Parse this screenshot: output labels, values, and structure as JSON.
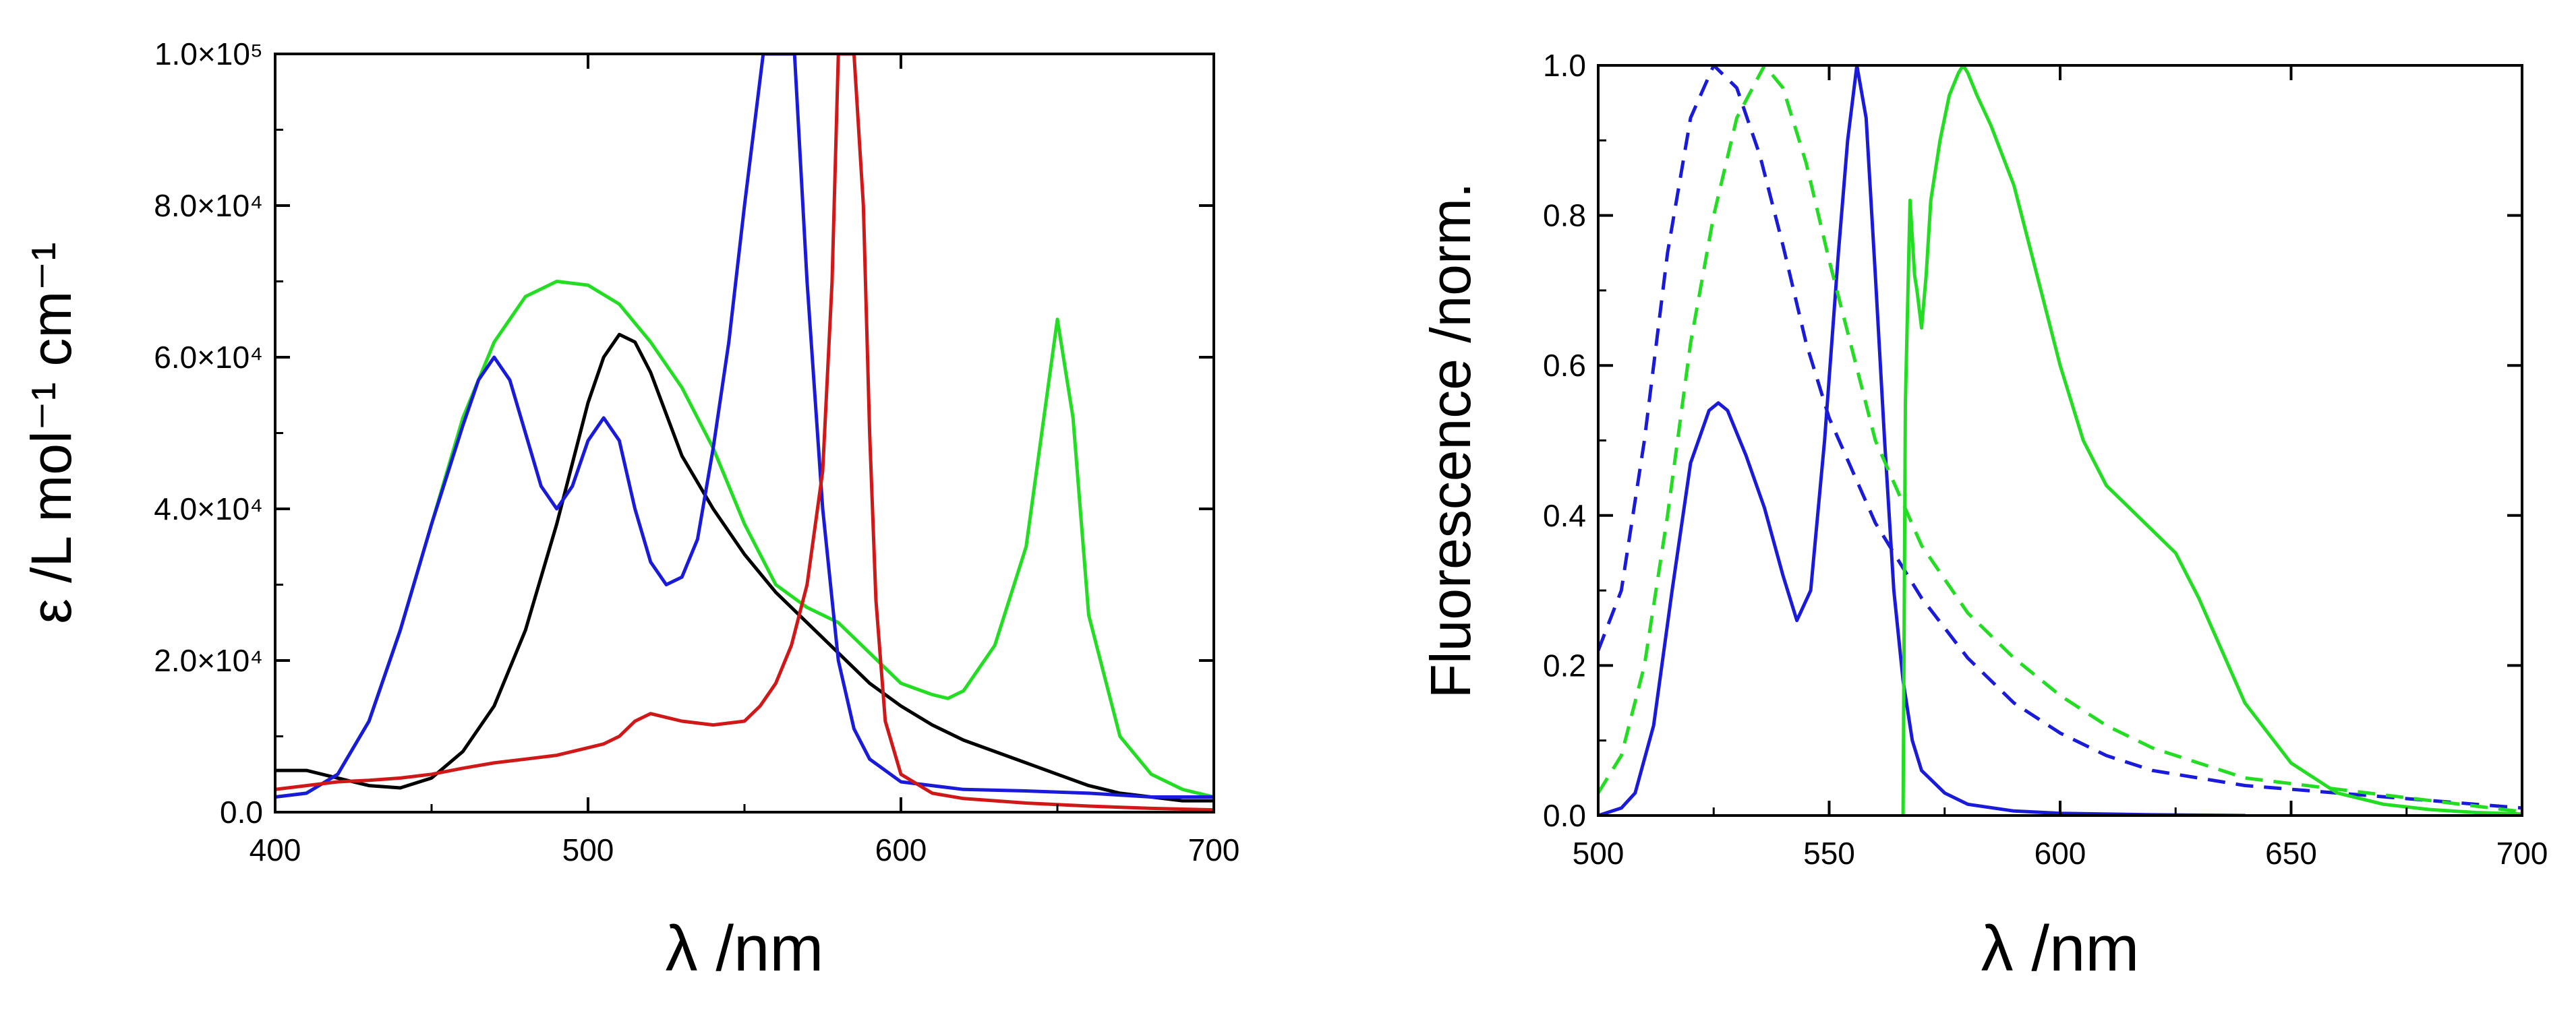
{
  "chart_data": [
    {
      "type": "line",
      "title": "",
      "xlabel": "λ /nm",
      "ylabel": "ε /L mol⁻¹ cm⁻¹",
      "xlim": [
        400,
        700
      ],
      "ylim": [
        0,
        100000
      ],
      "xticks": [
        400,
        500,
        600,
        700
      ],
      "xtick_labels": [
        "400",
        "500",
        "600",
        "700"
      ],
      "yticks": [
        0,
        20000,
        40000,
        60000,
        80000,
        100000
      ],
      "ytick_labels": [
        "0.0",
        "2.0×10⁴",
        "4.0×10⁴",
        "6.0×10⁴",
        "8.0×10⁴",
        "1.0×10⁵"
      ],
      "grid": false,
      "series": [
        {
          "name": "black",
          "color": "#000000",
          "dash": "solid",
          "x": [
            400,
            410,
            420,
            430,
            440,
            450,
            460,
            470,
            480,
            490,
            500,
            505,
            510,
            515,
            520,
            530,
            540,
            550,
            560,
            570,
            580,
            590,
            600,
            610,
            620,
            630,
            640,
            650,
            660,
            670,
            680,
            690,
            700
          ],
          "y": [
            5500,
            5500,
            4500,
            3500,
            3200,
            4500,
            8000,
            14000,
            24000,
            38000,
            54000,
            60000,
            63000,
            62000,
            58000,
            47000,
            40000,
            34000,
            29000,
            25000,
            21000,
            17000,
            14000,
            11500,
            9500,
            8000,
            6500,
            5000,
            3500,
            2500,
            2000,
            1500,
            1500
          ]
        },
        {
          "name": "green",
          "color": "#22dd22",
          "dash": "solid",
          "x": [
            400,
            410,
            420,
            430,
            440,
            450,
            460,
            470,
            480,
            490,
            500,
            510,
            520,
            530,
            540,
            550,
            560,
            570,
            580,
            590,
            600,
            610,
            615,
            620,
            630,
            640,
            645,
            650,
            655,
            660,
            670,
            680,
            690,
            700
          ],
          "y": [
            2000,
            2500,
            5000,
            12000,
            24000,
            38000,
            52000,
            62000,
            68000,
            70000,
            69500,
            67000,
            62000,
            56000,
            48000,
            38000,
            30000,
            27000,
            25000,
            21000,
            17000,
            15500,
            15000,
            16000,
            22000,
            35000,
            50000,
            65000,
            52000,
            26000,
            10000,
            5000,
            3000,
            2000
          ]
        },
        {
          "name": "blue",
          "color": "#1a1adb",
          "dash": "solid",
          "x": [
            400,
            410,
            420,
            430,
            440,
            450,
            460,
            465,
            470,
            475,
            480,
            485,
            490,
            495,
            500,
            505,
            510,
            515,
            520,
            525,
            530,
            535,
            540,
            545,
            550,
            553,
            556,
            560,
            566,
            570,
            575,
            580,
            585,
            590,
            600,
            620,
            640,
            660,
            680,
            700
          ],
          "y": [
            2000,
            2500,
            5000,
            12000,
            24000,
            38000,
            51000,
            57000,
            60000,
            57000,
            50000,
            43000,
            40000,
            43000,
            49000,
            52000,
            49000,
            40000,
            33000,
            30000,
            31000,
            36000,
            48000,
            62000,
            80000,
            90000,
            100000,
            100000,
            100000,
            70000,
            40000,
            20000,
            11000,
            7000,
            4000,
            3000,
            2800,
            2500,
            2000,
            2000
          ]
        },
        {
          "name": "red",
          "color": "#d01818",
          "dash": "solid",
          "x": [
            400,
            410,
            420,
            430,
            440,
            450,
            460,
            470,
            480,
            490,
            500,
            505,
            510,
            515,
            520,
            525,
            530,
            540,
            550,
            555,
            560,
            565,
            570,
            575,
            578,
            580,
            582,
            585,
            588,
            590,
            592,
            595,
            600,
            610,
            620,
            640,
            660,
            680,
            700
          ],
          "y": [
            3000,
            3500,
            4000,
            4200,
            4500,
            5000,
            5800,
            6500,
            7000,
            7500,
            8500,
            9000,
            10000,
            12000,
            13000,
            12500,
            12000,
            11500,
            12000,
            14000,
            17000,
            22000,
            30000,
            45000,
            70000,
            100000,
            100000,
            100000,
            80000,
            50000,
            28000,
            12000,
            5000,
            2500,
            1800,
            1200,
            800,
            500,
            300
          ]
        }
      ]
    },
    {
      "type": "line",
      "title": "",
      "xlabel": "λ /nm",
      "ylabel": "Fluorescence /norm.",
      "xlim": [
        500,
        700
      ],
      "ylim": [
        0,
        1
      ],
      "xticks": [
        500,
        550,
        600,
        650,
        700
      ],
      "xtick_labels": [
        "500",
        "550",
        "600",
        "650",
        "700"
      ],
      "yticks": [
        0,
        0.2,
        0.4,
        0.6,
        0.8,
        1.0
      ],
      "ytick_labels": [
        "0.0",
        "0.2",
        "0.4",
        "0.6",
        "0.8",
        "1.0"
      ],
      "grid": false,
      "series": [
        {
          "name": "blue solid",
          "color": "#1a1adb",
          "dash": "solid",
          "x": [
            500,
            505,
            508,
            512,
            516,
            520,
            524,
            526,
            528,
            532,
            536,
            540,
            543,
            546,
            549,
            552,
            554,
            556,
            558,
            560,
            562,
            564,
            566,
            568,
            570,
            575,
            580,
            590,
            600,
            620,
            640
          ],
          "y": [
            0.0,
            0.01,
            0.03,
            0.12,
            0.3,
            0.47,
            0.54,
            0.55,
            0.54,
            0.48,
            0.41,
            0.32,
            0.26,
            0.3,
            0.5,
            0.75,
            0.9,
            1.0,
            0.93,
            0.72,
            0.5,
            0.3,
            0.18,
            0.1,
            0.06,
            0.03,
            0.015,
            0.006,
            0.003,
            0.001,
            0.0
          ]
        },
        {
          "name": "blue dashed",
          "color": "#1a1adb",
          "dash": "dashed",
          "x": [
            500,
            505,
            510,
            515,
            520,
            525,
            530,
            535,
            540,
            545,
            550,
            560,
            570,
            580,
            590,
            600,
            610,
            620,
            640,
            660,
            680,
            700
          ],
          "y": [
            0.22,
            0.3,
            0.5,
            0.75,
            0.93,
            1.0,
            0.97,
            0.88,
            0.76,
            0.63,
            0.53,
            0.39,
            0.29,
            0.21,
            0.15,
            0.11,
            0.08,
            0.06,
            0.04,
            0.03,
            0.02,
            0.01
          ]
        },
        {
          "name": "green dashed",
          "color": "#22dd22",
          "dash": "dashed",
          "x": [
            500,
            505,
            510,
            515,
            520,
            525,
            530,
            536,
            540,
            545,
            550,
            555,
            560,
            570,
            580,
            590,
            600,
            610,
            620,
            640,
            660,
            680,
            700
          ],
          "y": [
            0.03,
            0.08,
            0.2,
            0.4,
            0.63,
            0.8,
            0.93,
            1.0,
            0.97,
            0.87,
            0.74,
            0.62,
            0.5,
            0.36,
            0.27,
            0.21,
            0.16,
            0.12,
            0.09,
            0.05,
            0.035,
            0.02,
            0.005
          ]
        },
        {
          "name": "green solid",
          "color": "#22dd22",
          "dash": "solid",
          "x": [
            566,
            566.5,
            567.5,
            568.5,
            569,
            570,
            571,
            572,
            574,
            576,
            578,
            579,
            580,
            582,
            585,
            590,
            595,
            600,
            605,
            610,
            615,
            620,
            625,
            630,
            635,
            640,
            650,
            660,
            670,
            680,
            690,
            700
          ],
          "y": [
            0.0,
            0.55,
            0.82,
            0.72,
            0.7,
            0.65,
            0.72,
            0.82,
            0.9,
            0.96,
            0.99,
            1.0,
            0.99,
            0.96,
            0.92,
            0.84,
            0.72,
            0.6,
            0.5,
            0.44,
            0.41,
            0.38,
            0.35,
            0.29,
            0.22,
            0.15,
            0.07,
            0.03,
            0.015,
            0.008,
            0.004,
            0.002
          ]
        }
      ]
    }
  ]
}
